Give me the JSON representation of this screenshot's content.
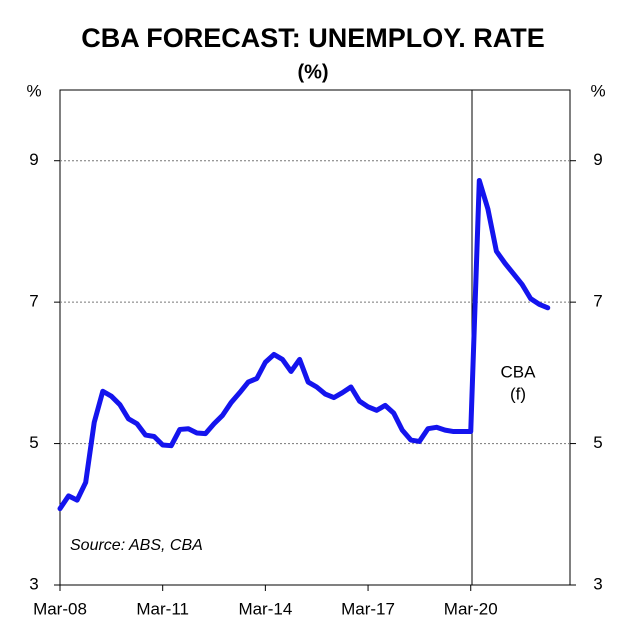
{
  "chart_data": {
    "type": "line",
    "title": "CBA FORECAST: UNEMPLOY. RATE",
    "subtitle": "(%)",
    "y_label": "%",
    "y2_label": "%",
    "annotation": [
      "CBA",
      "(f)"
    ],
    "source": "Source: ABS, CBA",
    "categories": [
      "Mar-08",
      null,
      null,
      null,
      null,
      null,
      null,
      null,
      null,
      null,
      null,
      null,
      "Mar-11",
      null,
      null,
      null,
      null,
      null,
      null,
      null,
      null,
      null,
      null,
      null,
      "Mar-14",
      null,
      null,
      null,
      null,
      null,
      null,
      null,
      null,
      null,
      null,
      null,
      "Mar-17",
      null,
      null,
      null,
      null,
      null,
      null,
      null,
      null,
      null,
      null,
      null,
      "Mar-20",
      null,
      null,
      null,
      null,
      null,
      null,
      null,
      null,
      null,
      null,
      null
    ],
    "series": [
      {
        "name": "Unemployment rate",
        "color": "#1414ee",
        "values": [
          4.08,
          4.26,
          4.2,
          4.45,
          5.3,
          5.74,
          5.67,
          5.55,
          5.35,
          5.28,
          5.12,
          5.1,
          4.98,
          4.97,
          5.2,
          5.21,
          5.15,
          5.14,
          5.28,
          5.4,
          5.58,
          5.72,
          5.87,
          5.92,
          6.15,
          6.26,
          6.19,
          6.02,
          6.19,
          5.87,
          5.8,
          5.7,
          5.65,
          5.72,
          5.8,
          5.6,
          5.52,
          5.47,
          5.54,
          5.43,
          5.19,
          5.05,
          5.03,
          5.21,
          5.23,
          5.19,
          5.17,
          5.17,
          5.17,
          8.72,
          8.32,
          7.72,
          7.55,
          7.4,
          7.25,
          7.05,
          6.97,
          6.92,
          null,
          null
        ]
      }
    ],
    "ylim": [
      3,
      10
    ],
    "yticks": [
      3,
      5,
      7,
      9
    ],
    "grid": true
  }
}
